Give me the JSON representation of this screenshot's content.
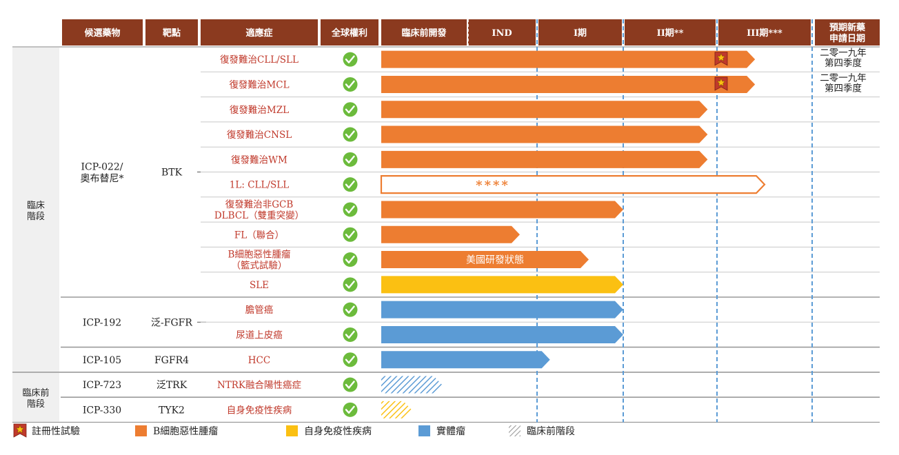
{
  "chart_data": {
    "type": "table",
    "title": "",
    "colors": {
      "header": "#8B3A1F",
      "b_cell": "#ED7D31",
      "autoimmune": "#FBC012",
      "solid_tumor": "#5B9BD5",
      "indication_text": "#C0392B",
      "check": "#6CBB3C",
      "stage_panel": "#F0F0F0",
      "dashed": "#5B9BD5"
    },
    "headers": {
      "candidate": "候選藥物",
      "target": "靶點",
      "indication": "適應症",
      "rights": "全球權利",
      "phases": [
        "臨床前開發",
        "IND",
        "I期",
        "II期**",
        "III期***"
      ],
      "nda": "預期新藥申請日期"
    },
    "stages": [
      {
        "label_lines": [
          "臨床",
          "階段"
        ]
      },
      {
        "label_lines": [
          "臨床前",
          "階段"
        ]
      }
    ],
    "drugs": [
      {
        "name_lines": [
          "ICP-022/",
          "奧布替尼*"
        ],
        "target": "BTK"
      },
      {
        "name_lines": [
          "ICP-192"
        ],
        "target": "泛-FGFR"
      },
      {
        "name_lines": [
          "ICP-105"
        ],
        "target": "FGFR4"
      },
      {
        "name_lines": [
          "ICP-723"
        ],
        "target": "泛TRK"
      },
      {
        "name_lines": [
          "ICP-330"
        ],
        "target": "TYK2"
      }
    ],
    "rows": [
      {
        "indication_lines": [
          "復發難治CLL/SLL"
        ],
        "category": "b_cell",
        "progress": 4.4,
        "style": "solid",
        "registrational": true,
        "nda_lines": [
          "二零一九年",
          "第四季度"
        ],
        "bar_label": ""
      },
      {
        "indication_lines": [
          "復發難治MCL"
        ],
        "category": "b_cell",
        "progress": 4.4,
        "style": "solid",
        "registrational": true,
        "nda_lines": [
          "二零一九年",
          "第四季度"
        ],
        "bar_label": ""
      },
      {
        "indication_lines": [
          "復發難治MZL"
        ],
        "category": "b_cell",
        "progress": 3.9,
        "style": "solid",
        "registrational": false,
        "nda_lines": [],
        "bar_label": ""
      },
      {
        "indication_lines": [
          "復發難治CNSL"
        ],
        "category": "b_cell",
        "progress": 3.9,
        "style": "solid",
        "registrational": false,
        "nda_lines": [],
        "bar_label": ""
      },
      {
        "indication_lines": [
          "復發難治WM"
        ],
        "category": "b_cell",
        "progress": 3.9,
        "style": "solid",
        "registrational": false,
        "nda_lines": [],
        "bar_label": ""
      },
      {
        "indication_lines": [
          "1L: CLL/SLL"
        ],
        "category": "b_cell",
        "progress": 4.5,
        "style": "outline",
        "registrational": false,
        "nda_lines": [],
        "bar_label": "****"
      },
      {
        "indication_lines": [
          "復發難治非GCB",
          "DLBCL（雙重突變）"
        ],
        "category": "b_cell",
        "progress": 3.0,
        "style": "solid",
        "registrational": false,
        "nda_lines": [],
        "bar_label": ""
      },
      {
        "indication_lines": [
          "FL（聯合）"
        ],
        "category": "b_cell",
        "progress": 1.75,
        "style": "solid",
        "registrational": false,
        "nda_lines": [],
        "bar_label": ""
      },
      {
        "indication_lines": [
          "B細胞惡性腫瘤",
          "（籃式試驗）"
        ],
        "category": "b_cell",
        "progress": 2.6,
        "style": "solid",
        "registrational": false,
        "nda_lines": [],
        "bar_label": "美國研發狀態"
      },
      {
        "indication_lines": [
          "SLE"
        ],
        "category": "autoimmune",
        "progress": 3.0,
        "style": "solid",
        "registrational": false,
        "nda_lines": [],
        "bar_label": ""
      },
      {
        "indication_lines": [
          "膽管癌"
        ],
        "category": "solid_tumor",
        "progress": 3.0,
        "style": "solid",
        "registrational": false,
        "nda_lines": [],
        "bar_label": ""
      },
      {
        "indication_lines": [
          "尿道上皮癌"
        ],
        "category": "solid_tumor",
        "progress": 3.0,
        "style": "solid",
        "registrational": false,
        "nda_lines": [],
        "bar_label": ""
      },
      {
        "indication_lines": [
          "HCC"
        ],
        "category": "solid_tumor",
        "progress": 2.15,
        "style": "solid",
        "registrational": false,
        "nda_lines": [],
        "bar_label": ""
      },
      {
        "indication_lines": [
          "NTRK融合陽性癌症"
        ],
        "category": "solid_tumor",
        "progress": 0.7,
        "style": "hatched",
        "registrational": false,
        "nda_lines": [],
        "bar_label": ""
      },
      {
        "indication_lines": [
          "自身免疫性疾病"
        ],
        "category": "autoimmune",
        "progress": 0.35,
        "style": "hatched",
        "registrational": false,
        "nda_lines": [],
        "bar_label": ""
      }
    ],
    "legend": [
      {
        "kind": "registrational",
        "label": "註冊性試驗"
      },
      {
        "kind": "b_cell",
        "label": "B細胞惡性腫瘤"
      },
      {
        "kind": "autoimmune",
        "label": "自身免疫性疾病"
      },
      {
        "kind": "solid_tumor",
        "label": "實體瘤"
      },
      {
        "kind": "preclinical",
        "label": "臨床前階段"
      }
    ]
  }
}
